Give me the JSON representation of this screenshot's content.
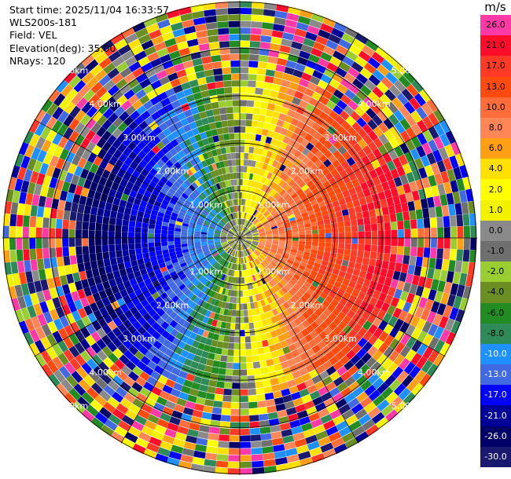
{
  "info": {
    "start_time": "Start time: 2025/11/04 16:33:57",
    "site": "WLS200s-181",
    "field": "Field: VEL",
    "elevation": "Elevation(deg): 35.00",
    "nrays": "NRays: 120"
  },
  "colorbar": {
    "unit": "m/s",
    "levels": [
      {
        "label": "26.0",
        "color": "#ff39a6"
      },
      {
        "label": "21.0",
        "color": "#ff0d2a"
      },
      {
        "label": "17.0",
        "color": "#ff3a27"
      },
      {
        "label": "13.0",
        "color": "#ff4a10"
      },
      {
        "label": "10.0",
        "color": "#ff6e3a"
      },
      {
        "label": "8.0",
        "color": "#ff8656"
      },
      {
        "label": "6.0",
        "color": "#ff9f15"
      },
      {
        "label": "4.0",
        "color": "#ffe000"
      },
      {
        "label": "2.0",
        "color": "#ffff00"
      },
      {
        "label": "1.0",
        "color": "#f2f200"
      },
      {
        "label": "0.0",
        "color": "#8a8a8a"
      },
      {
        "label": "-1.0",
        "color": "#6f6f6f"
      },
      {
        "label": "-2.0",
        "color": "#9acd32"
      },
      {
        "label": "-4.0",
        "color": "#6b8e23"
      },
      {
        "label": "-6.0",
        "color": "#228b22"
      },
      {
        "label": "-8.0",
        "color": "#2e8b57"
      },
      {
        "label": "-10.0",
        "color": "#1e90ff"
      },
      {
        "label": "-13.0",
        "color": "#4169e1"
      },
      {
        "label": "-17.0",
        "color": "#0000ff"
      },
      {
        "label": "-21.0",
        "color": "#000099"
      },
      {
        "label": "-26.0",
        "color": "#000066"
      },
      {
        "label": "-30.0",
        "color": "#191970"
      }
    ]
  },
  "chart_data": {
    "type": "heatmap",
    "projection": "polar-ppi",
    "field": "VEL",
    "nrays": 120,
    "elevation_deg": 35.0,
    "range_ring_labels": [
      "1.00km",
      "2.00km",
      "3.00km",
      "4.00km",
      "5.00km"
    ],
    "range_rings_km": [
      1,
      2,
      3,
      4,
      5
    ],
    "max_range_km": 5.0,
    "azimuth_lines_deg": [
      0,
      30,
      60,
      90,
      120,
      150,
      180,
      210,
      240,
      270,
      300,
      330
    ],
    "pattern": "Doppler dipole: positive (red/pink/yellow) velocities to the east, negative (green/blue) to the west, noise beyond about 3.5 km"
  }
}
